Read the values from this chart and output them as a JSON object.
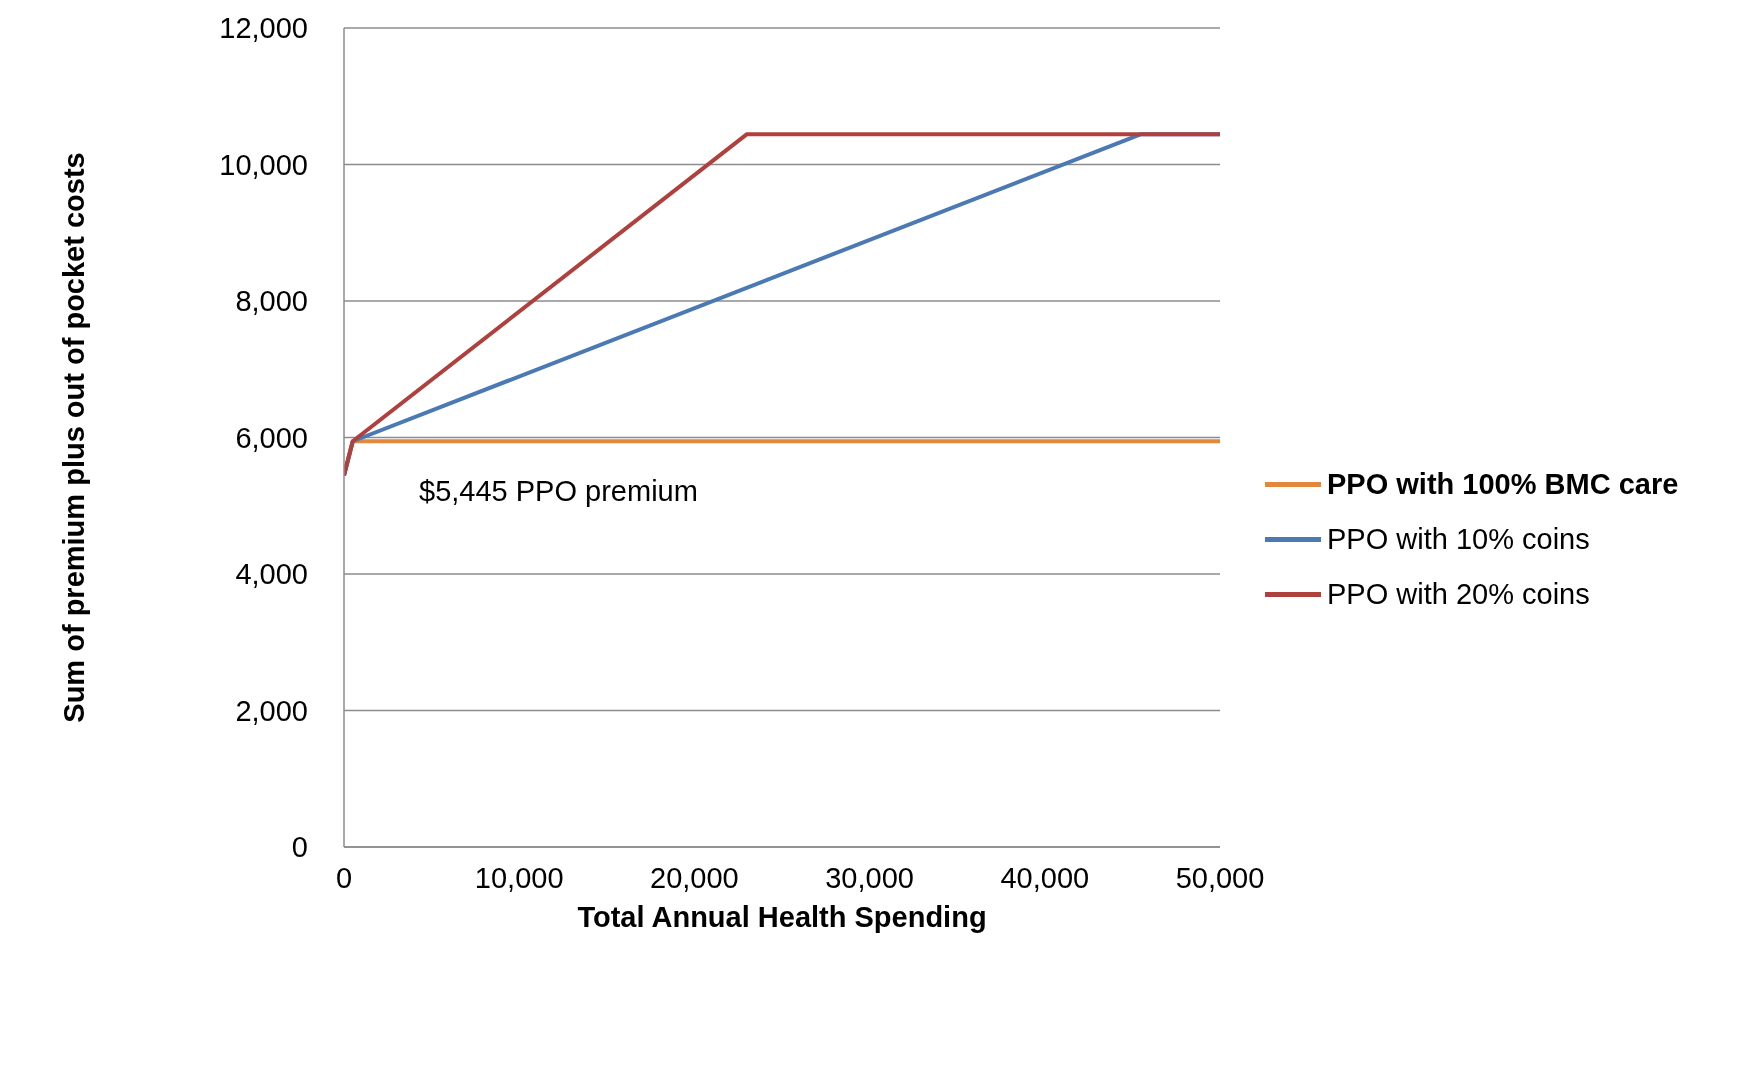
{
  "chart_data": {
    "type": "line",
    "xlabel": "Total Annual Health Spending",
    "ylabel": "Sum of premium plus out of pocket costs",
    "xlim": [
      0,
      50000
    ],
    "xticks": [
      0,
      {
        "value": 10000,
        "label": "10,000"
      },
      {
        "value": 20000,
        "label": "20,000"
      },
      {
        "value": 30000,
        "label": "30,000"
      },
      {
        "value": 40000,
        "label": "40,000"
      },
      {
        "value": 50000,
        "label": "50,000"
      }
    ],
    "ylim": [
      0,
      12000
    ],
    "yticks": [
      0,
      {
        "value": 2000,
        "label": "2,000"
      },
      {
        "value": 4000,
        "label": "4,000"
      },
      {
        "value": 6000,
        "label": "6,000"
      },
      {
        "value": 8000,
        "label": "8,000"
      },
      {
        "value": 10000,
        "label": "10,000"
      },
      {
        "value": 12000,
        "label": "12,000"
      }
    ],
    "grid": "y",
    "legend": "right",
    "marker": "none",
    "line_style": "solid",
    "series": [
      {
        "name": "PPO with 100% BMC care",
        "color": "#e3873a",
        "x": [
          0,
          500,
          50000
        ],
        "values": [
          5445,
          5945,
          5945
        ]
      },
      {
        "name": "PPO with 10% coins",
        "color": "#4a79b4",
        "x": [
          0,
          500,
          45500,
          50000
        ],
        "values": [
          5445,
          5945,
          10445,
          10445
        ]
      },
      {
        "name": "PPO with 20% coins",
        "color": "#b0403e",
        "x": [
          0,
          500,
          23000,
          50000
        ],
        "values": [
          5445,
          5945,
          10445,
          10445
        ]
      }
    ],
    "annotations": [
      {
        "text": "$5,445 PPO premium",
        "x": 0,
        "y": 5445
      }
    ]
  }
}
